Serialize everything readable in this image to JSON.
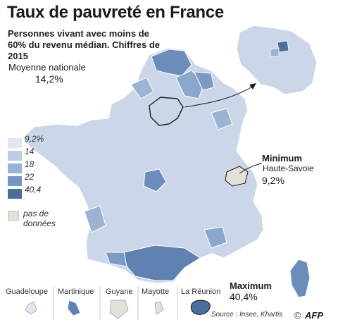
{
  "title": "Taux de pauvreté en France",
  "subtitle": "Personnes vivant avec moins de 60% du revenu médian. Chiffres de 2015",
  "average": {
    "label": "Moyenne nationale",
    "value": "14,2%"
  },
  "legend": {
    "thresholds": [
      "9,2%",
      "14",
      "18",
      "22",
      "40,4"
    ],
    "colors": [
      "#dfe7f1",
      "#bccde3",
      "#9bb4d3",
      "#7596c0",
      "#4b6e9d"
    ],
    "no_data_label": "pas de données",
    "no_data_color": "#e3e0d8"
  },
  "minimum": {
    "title": "Minimum",
    "name": "Haute-Savoie",
    "value": "9,2%"
  },
  "maximum": {
    "title": "Maximum",
    "value": "40,4%"
  },
  "overseas": [
    "Guadeloupe",
    "Martinique",
    "Guyane",
    "Mayotte",
    "La Réunion"
  ],
  "source": "Source : Insee, Khartis",
  "credit": "©",
  "logo": "AFP"
}
